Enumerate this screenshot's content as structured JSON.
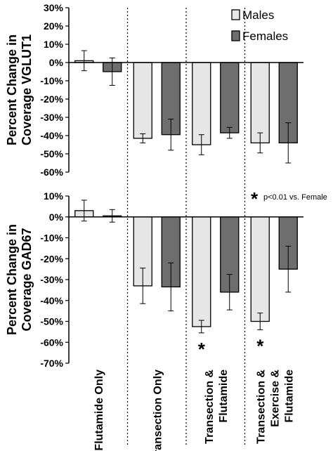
{
  "chart_data": [
    {
      "type": "bar",
      "ylabel": "Percent Change in Coverage VGLUT1",
      "ylabel_lines": [
        "Percent Change in",
        "Coverage VGLUT1"
      ],
      "ylim": [
        -60,
        30
      ],
      "yticks": [
        30,
        20,
        10,
        0,
        -10,
        -20,
        -30,
        -40,
        -50,
        -60
      ],
      "ytick_labels": [
        "30%",
        "20%",
        "10%",
        "0%",
        "-10%",
        "-20%",
        "-30%",
        "-40%",
        "-50%",
        "-60%"
      ],
      "categories": [
        "Flutamide Only",
        "Transection Only",
        "Transection & Flutamide",
        "Transection & Exercise & Flutamide"
      ],
      "series": [
        {
          "name": "Males",
          "color": "#e6e6e6",
          "values": [
            1,
            -41.5,
            -45,
            -44
          ],
          "errors": [
            5.5,
            2.5,
            5.5,
            5.5
          ]
        },
        {
          "name": "Females",
          "color": "#6e6e6e",
          "values": [
            -5,
            -39.5,
            -38.5,
            -44
          ],
          "errors": [
            7.5,
            8.5,
            3,
            11
          ]
        }
      ],
      "significance": [
        null,
        null,
        null,
        null
      ],
      "legend": {
        "position": "top-right",
        "entries": [
          "Males",
          "Females"
        ]
      }
    },
    {
      "type": "bar",
      "ylabel": "Percent Change in Coverage GAD67",
      "ylabel_lines": [
        "Percent Change in",
        "Coverage GAD67"
      ],
      "ylim": [
        -70,
        10
      ],
      "yticks": [
        10,
        0,
        -10,
        -20,
        -30,
        -40,
        -50,
        -60,
        -70
      ],
      "ytick_labels": [
        "10%",
        "0%",
        "-10%",
        "-20%",
        "-30%",
        "-40%",
        "-50%",
        "-60%",
        "-70%"
      ],
      "categories": [
        "Flutamide Only",
        "Transection Only",
        "Transection & Flutamide",
        "Transection & Exercise & Flutamide"
      ],
      "category_label_lines": [
        [
          "Flutamide Only"
        ],
        [
          "Transection Only"
        ],
        [
          "Transection &",
          "Flutamide"
        ],
        [
          "Transection &",
          "Exercise &",
          "Flutamide"
        ]
      ],
      "series": [
        {
          "name": "Males",
          "color": "#e6e6e6",
          "values": [
            3,
            -33,
            -52.5,
            -50
          ],
          "errors": [
            5,
            8.5,
            3,
            4
          ]
        },
        {
          "name": "Females",
          "color": "#6e6e6e",
          "values": [
            0.5,
            -33.5,
            -36,
            -25
          ],
          "errors": [
            3,
            11.5,
            8.5,
            11
          ]
        }
      ],
      "significance_marker": "*",
      "significance_on_males": [
        false,
        false,
        true,
        true
      ],
      "annotation": "* p<0.01 vs. Female",
      "annotation_symbol": "*",
      "annotation_text": "p<0.01 vs. Female"
    }
  ]
}
